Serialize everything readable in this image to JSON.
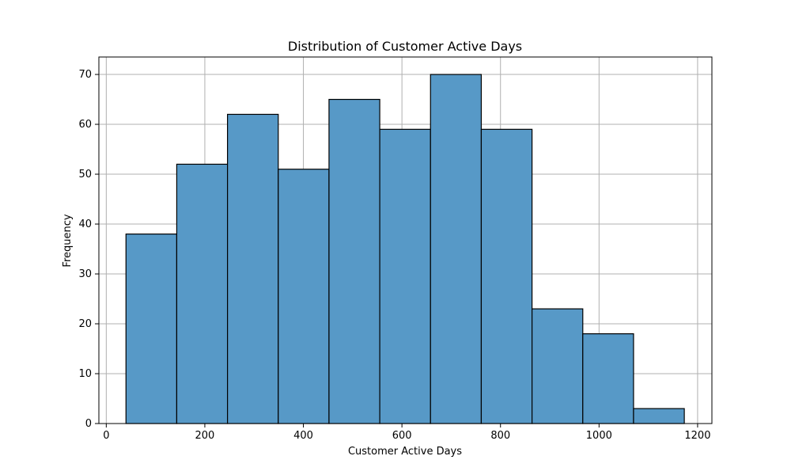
{
  "chart_data": {
    "type": "bar",
    "title": "Distribution of Customer Active Days",
    "xlabel": "Customer Active Days",
    "ylabel": "Frequency",
    "bins": [
      {
        "start": 40,
        "end": 143,
        "value": 38
      },
      {
        "start": 143,
        "end": 246,
        "value": 52
      },
      {
        "start": 246,
        "end": 349,
        "value": 62
      },
      {
        "start": 349,
        "end": 452,
        "value": 51
      },
      {
        "start": 452,
        "end": 555,
        "value": 65
      },
      {
        "start": 555,
        "end": 658,
        "value": 59
      },
      {
        "start": 658,
        "end": 761,
        "value": 70
      },
      {
        "start": 761,
        "end": 864,
        "value": 59
      },
      {
        "start": 864,
        "end": 967,
        "value": 23
      },
      {
        "start": 967,
        "end": 1070,
        "value": 18
      },
      {
        "start": 1070,
        "end": 1173,
        "value": 3
      }
    ],
    "xlim": [
      -15,
      1229
    ],
    "ylim": [
      0,
      73.5
    ],
    "xticks": [
      0,
      200,
      400,
      600,
      800,
      1000,
      1200
    ],
    "yticks": [
      0,
      10,
      20,
      30,
      40,
      50,
      60,
      70
    ],
    "grid": true,
    "colors": {
      "bar_fill": "#5799c7",
      "bar_edge": "#000000",
      "grid": "#b0b0b0",
      "axis": "#000000",
      "background": "#ffffff"
    }
  }
}
